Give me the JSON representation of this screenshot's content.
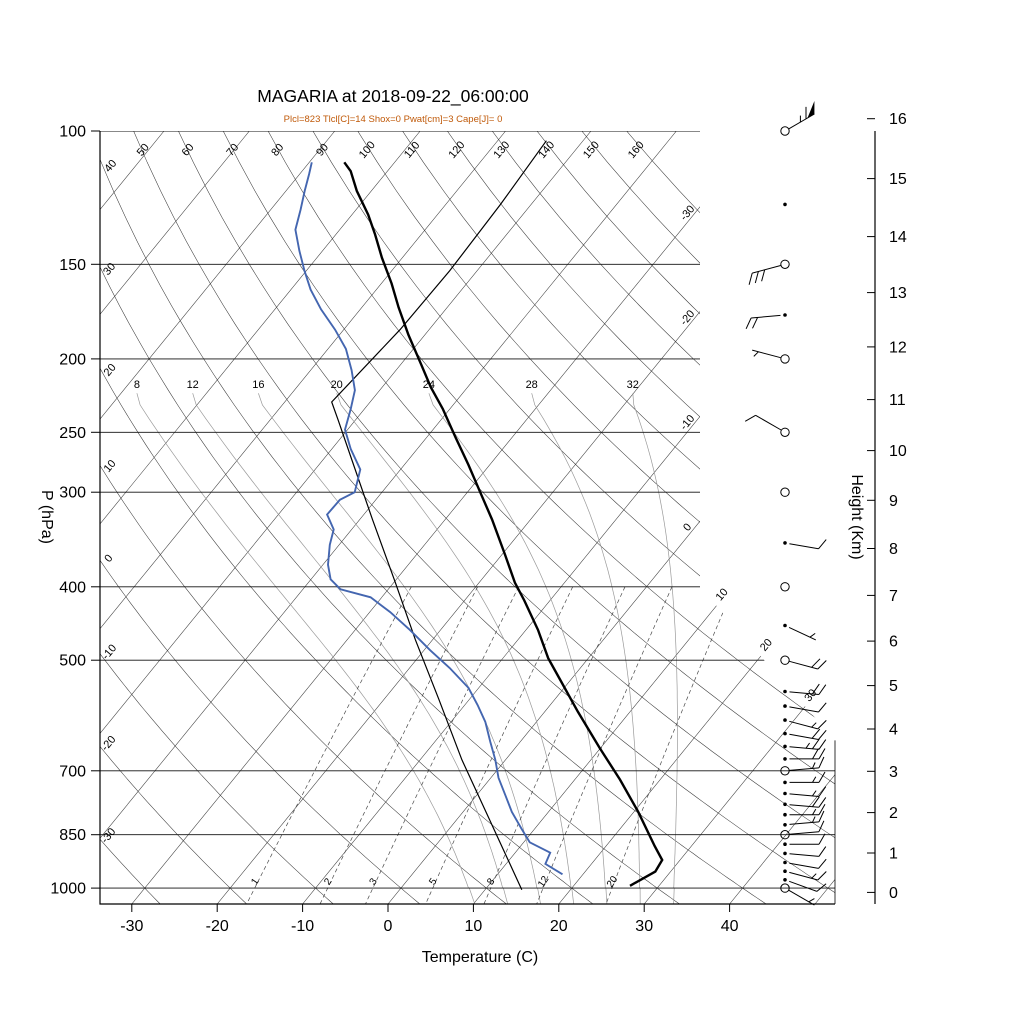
{
  "chart_data": {
    "type": "line",
    "variant": "skewt-logp-sounding",
    "title": "MAGARIA at 2018-09-22_06:00:00",
    "subtitle": "Plcl=823 Tlcl[C]=14 Shox=0 Pwat[cm]=3 Cape[J]= 0",
    "axes": {
      "pressure_label": "P (hPa)",
      "pressure_ticks": [
        100,
        150,
        200,
        250,
        300,
        400,
        500,
        700,
        850,
        1000
      ],
      "temperature_label": "Temperature (C)",
      "temperature_ticks": [
        -30,
        -20,
        -10,
        0,
        10,
        20,
        30,
        40
      ],
      "height_label": "Height (Km)",
      "height_ticks": [
        0,
        1,
        2,
        3,
        4,
        5,
        6,
        7,
        8,
        9,
        10,
        11,
        12,
        13,
        14,
        15,
        16
      ]
    },
    "background": {
      "isotherms": {
        "start": -120,
        "end": 50,
        "step": 10
      },
      "isotherm_label_values": [
        -30,
        -20,
        -10,
        0,
        10,
        20,
        30
      ],
      "dry_adiabats": {
        "start": -30,
        "end": 160,
        "step": 10
      },
      "moist_adiabats": [
        8,
        12,
        16,
        20,
        24,
        28,
        32
      ],
      "mixing_ratio": [
        1,
        2,
        3,
        5,
        8,
        12,
        20
      ]
    },
    "colors": {
      "temperature_line": "#000000",
      "dewpoint_line": "#4466b0",
      "parcel_line": "#000000",
      "subtitle_text": "#c05a0a",
      "grid": "#3a3a3a",
      "moist_adiabat": "#9a9a9a"
    },
    "sounding": {
      "temperature": [
        [
          993,
          26.6
        ],
        [
          951,
          28.2
        ],
        [
          918,
          27.9
        ],
        [
          880,
          25.7
        ],
        [
          793,
          20.5
        ],
        [
          719,
          15.3
        ],
        [
          653,
          9.9
        ],
        [
          585,
          3.9
        ],
        [
          531,
          -1.2
        ],
        [
          497,
          -4.7
        ],
        [
          456,
          -8.6
        ],
        [
          417,
          -13.0
        ],
        [
          395,
          -15.8
        ],
        [
          363,
          -19.6
        ],
        [
          326,
          -24.5
        ],
        [
          300,
          -28.5
        ],
        [
          276,
          -32.5
        ],
        [
          254,
          -36.6
        ],
        [
          233,
          -40.8
        ],
        [
          218,
          -44.3
        ],
        [
          203,
          -47.7
        ],
        [
          186,
          -51.9
        ],
        [
          171,
          -55.7
        ],
        [
          159,
          -58.8
        ],
        [
          147,
          -62.4
        ],
        [
          137,
          -65.4
        ],
        [
          129,
          -68.1
        ],
        [
          120,
          -71.7
        ],
        [
          113,
          -74.3
        ],
        [
          110,
          -75.9
        ]
      ],
      "dewpoint": [
        [
          959,
          17.6
        ],
        [
          929,
          14.6
        ],
        [
          898,
          14.1
        ],
        [
          870,
          10.7
        ],
        [
          834,
          8.4
        ],
        [
          793,
          5.7
        ],
        [
          753,
          3.3
        ],
        [
          715,
          0.9
        ],
        [
          677,
          -1.2
        ],
        [
          641,
          -3.5
        ],
        [
          603,
          -6.0
        ],
        [
          573,
          -8.5
        ],
        [
          544,
          -11.2
        ],
        [
          512,
          -15.3
        ],
        [
          485,
          -19.3
        ],
        [
          456,
          -23.6
        ],
        [
          432,
          -27.6
        ],
        [
          413,
          -31.3
        ],
        [
          403,
          -35.6
        ],
        [
          391,
          -37.7
        ],
        [
          374,
          -39.4
        ],
        [
          352,
          -41.1
        ],
        [
          336,
          -42.1
        ],
        [
          321,
          -44.3
        ],
        [
          307,
          -44.2
        ],
        [
          300,
          -43.2
        ],
        [
          280,
          -44.7
        ],
        [
          263,
          -47.8
        ],
        [
          248,
          -50.3
        ],
        [
          233,
          -51.6
        ],
        [
          220,
          -52.9
        ],
        [
          207,
          -55.2
        ],
        [
          194,
          -57.9
        ],
        [
          183,
          -61.0
        ],
        [
          172,
          -64.6
        ],
        [
          162,
          -67.7
        ],
        [
          153,
          -70.2
        ],
        [
          144,
          -72.7
        ],
        [
          135,
          -75.2
        ],
        [
          127,
          -76.5
        ],
        [
          120,
          -77.8
        ],
        [
          114,
          -78.9
        ],
        [
          110,
          -79.7
        ]
      ],
      "parcel": [
        [
          1005,
          14.3
        ],
        [
          813,
          3.9
        ],
        [
          677,
          -5.1
        ],
        [
          563,
          -13.6
        ],
        [
          470,
          -22.0
        ],
        [
          395,
          -29.8
        ],
        [
          326,
          -38.5
        ],
        [
          272,
          -46.6
        ],
        [
          241,
          -52.0
        ],
        [
          228,
          -54.5
        ],
        [
          183,
          -53.4
        ],
        [
          153,
          -53.2
        ],
        [
          125,
          -53.6
        ],
        [
          103,
          -54.3
        ]
      ]
    },
    "wind_circle_levels": [
      100,
      150,
      200,
      250,
      300,
      400,
      500,
      700,
      850,
      1000
    ],
    "winds": [
      [
        1000,
        120,
        5
      ],
      [
        975,
        110,
        10
      ],
      [
        950,
        105,
        15
      ],
      [
        925,
        100,
        10
      ],
      [
        900,
        95,
        10
      ],
      [
        875,
        90,
        10
      ],
      [
        850,
        85,
        10
      ],
      [
        825,
        85,
        15
      ],
      [
        800,
        90,
        15
      ],
      [
        775,
        95,
        20
      ],
      [
        750,
        95,
        15
      ],
      [
        725,
        90,
        15
      ],
      [
        700,
        85,
        15
      ],
      [
        675,
        90,
        20
      ],
      [
        650,
        95,
        25
      ],
      [
        625,
        100,
        20
      ],
      [
        600,
        105,
        15
      ],
      [
        575,
        100,
        10
      ],
      [
        550,
        95,
        20
      ],
      [
        500,
        105,
        20
      ],
      [
        450,
        115,
        5
      ],
      [
        400,
        0,
        0
      ],
      [
        350,
        100,
        10
      ],
      [
        300,
        0,
        0
      ],
      [
        250,
        300,
        10
      ],
      [
        200,
        285,
        5
      ],
      [
        175,
        265,
        20
      ],
      [
        150,
        255,
        30
      ],
      [
        125,
        0,
        0
      ],
      [
        100,
        60,
        65
      ]
    ]
  }
}
